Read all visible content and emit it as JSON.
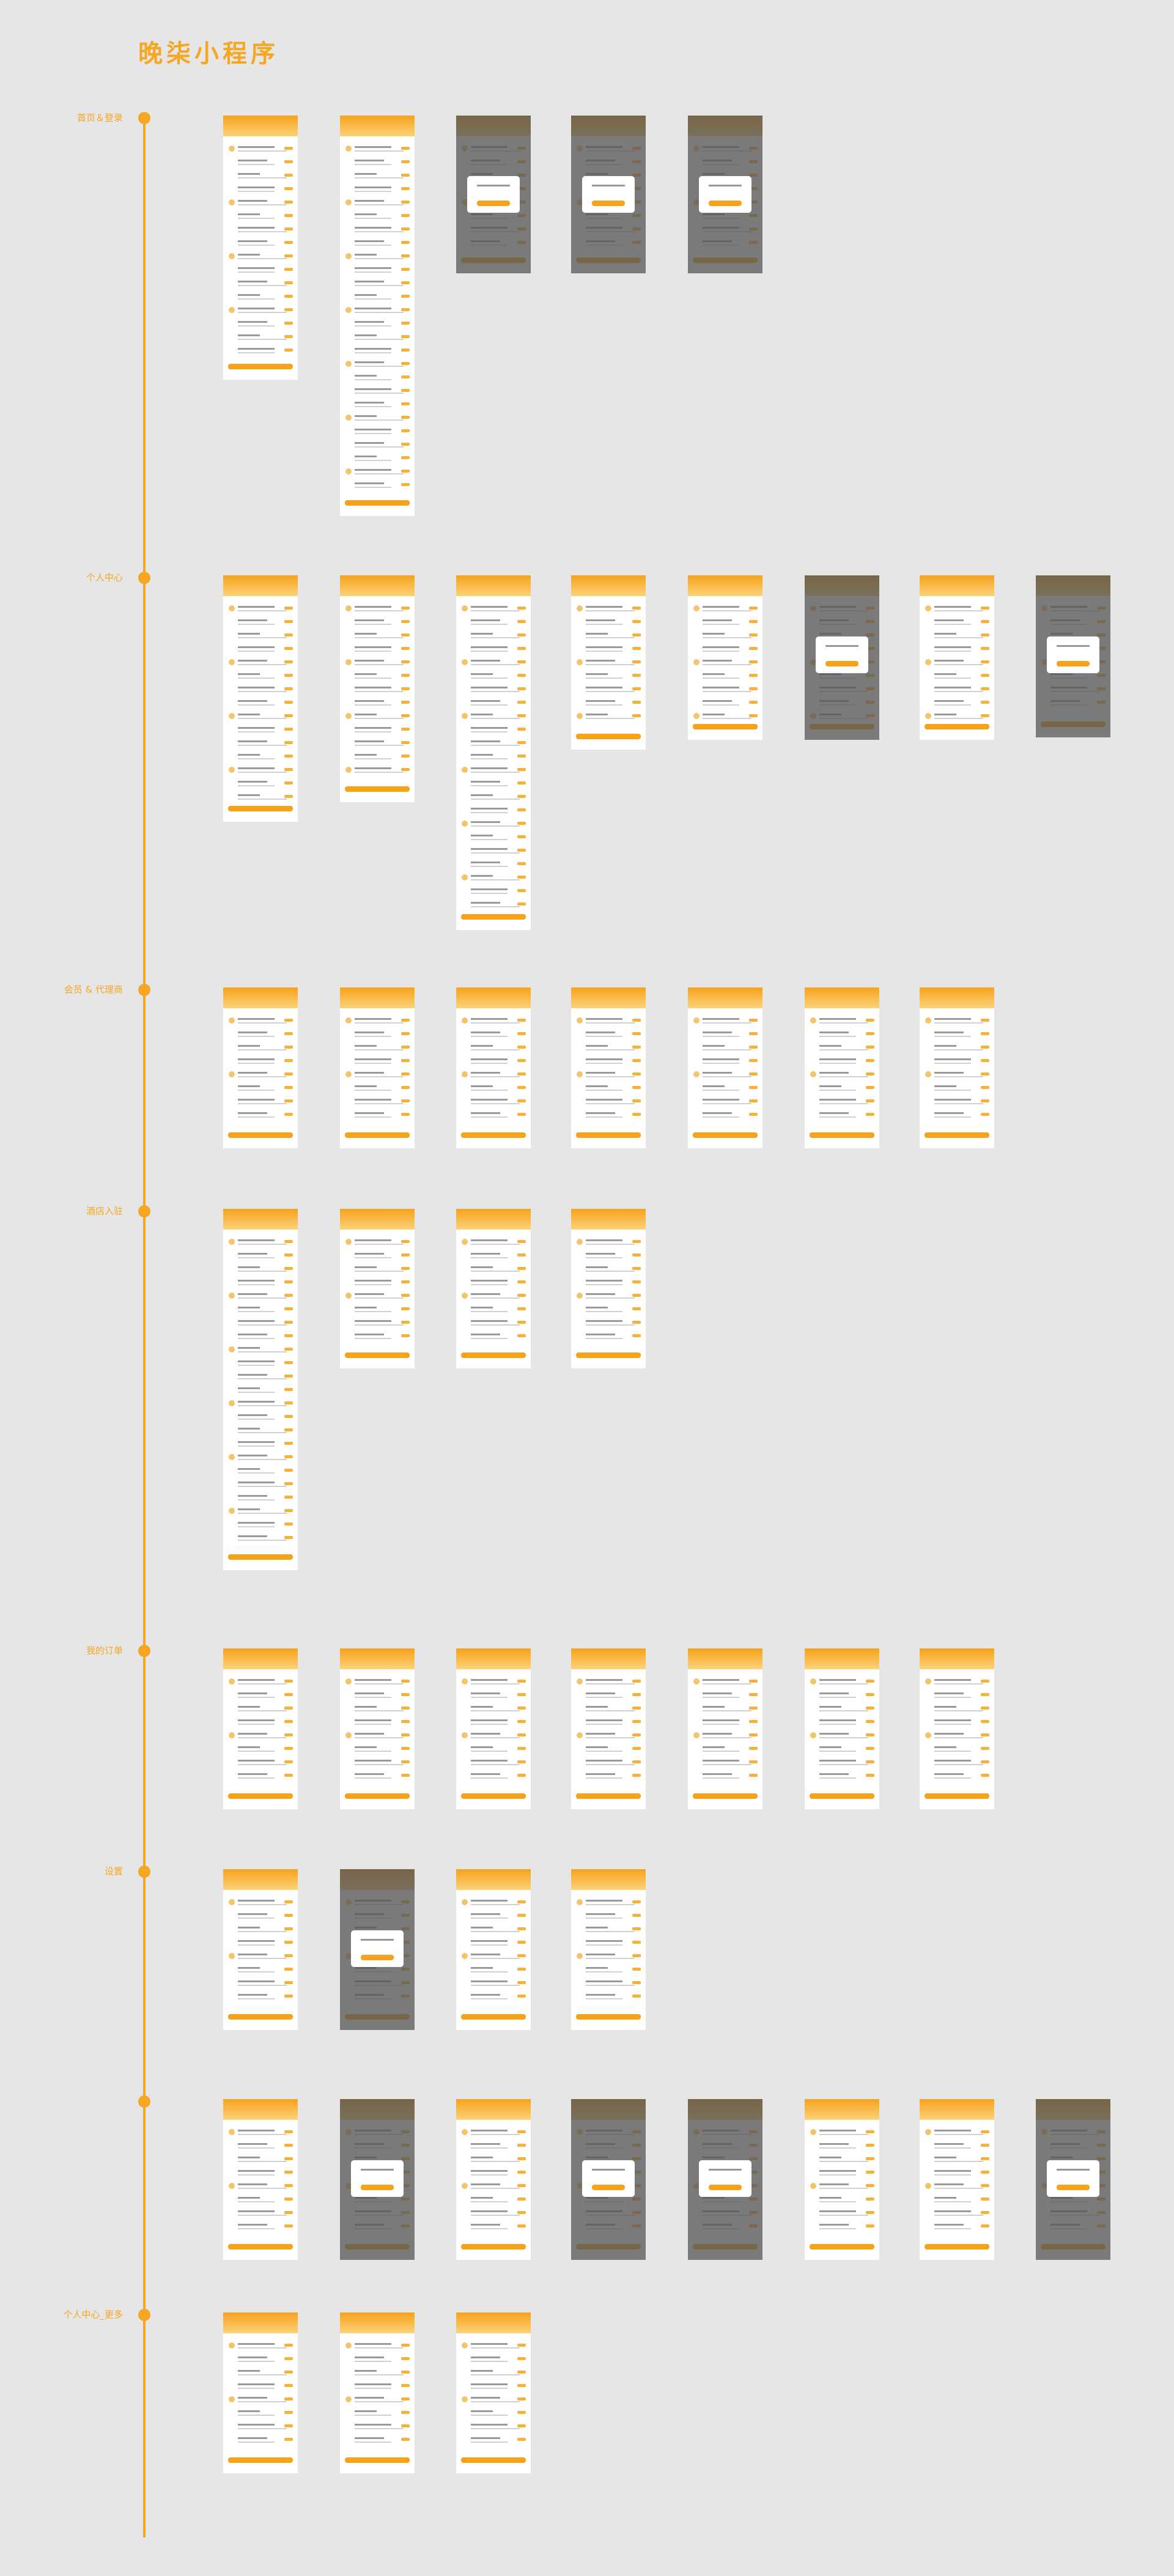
{
  "title": "晚柒小程序",
  "sections": [
    {
      "label": "首页＆登录"
    },
    {
      "label": "个人中心"
    },
    {
      "label": "会员 & 代理商"
    },
    {
      "label": "酒店入驻"
    },
    {
      "label": "我的订单"
    },
    {
      "label": "设置"
    },
    {
      "label": "个人中心_更多"
    }
  ]
}
